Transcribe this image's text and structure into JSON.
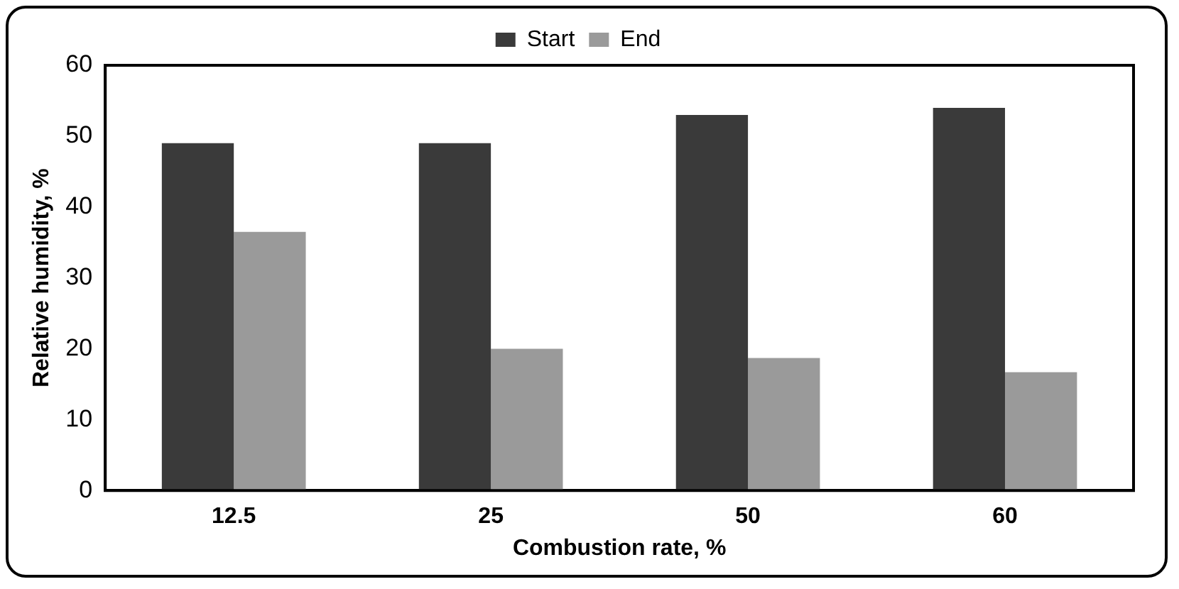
{
  "chart_data": {
    "type": "bar",
    "xlabel": "Combustion rate, %",
    "ylabel": "Relative humidity, %",
    "categories": [
      "12.5",
      "25",
      "50",
      "60"
    ],
    "series": [
      {
        "name": "Start",
        "color": "#3a3a3a",
        "values": [
          49,
          49,
          53,
          54
        ]
      },
      {
        "name": "End",
        "color": "#9a9a9a",
        "values": [
          36.5,
          20,
          18.7,
          16.7
        ]
      }
    ],
    "ylim": [
      0,
      60
    ],
    "yticks": [
      0,
      10,
      20,
      30,
      40,
      50,
      60
    ],
    "grid": false,
    "legend": "top"
  }
}
